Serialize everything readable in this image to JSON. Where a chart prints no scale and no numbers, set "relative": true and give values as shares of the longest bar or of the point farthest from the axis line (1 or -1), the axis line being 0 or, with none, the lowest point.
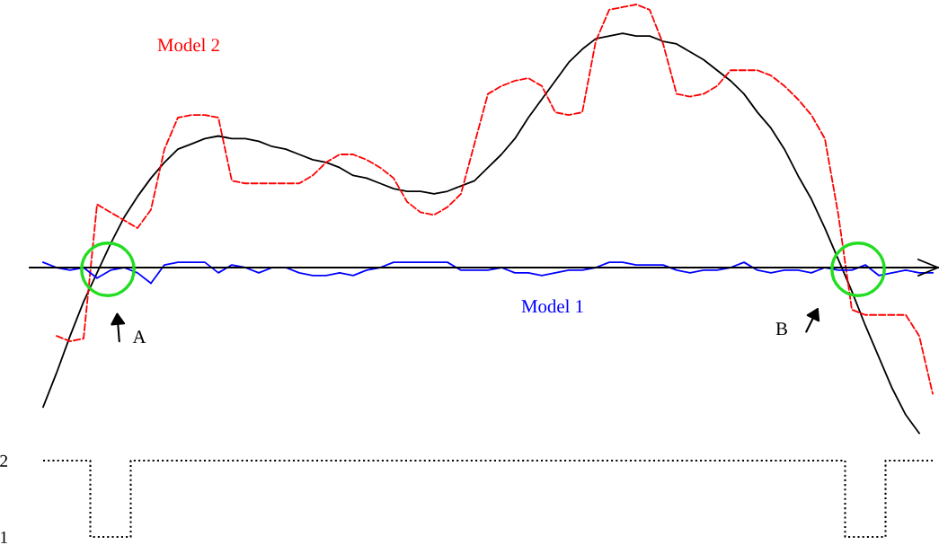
{
  "chart_data": [
    {
      "type": "line",
      "relative": true,
      "line_style": "solid",
      "marker": "none",
      "grid": false,
      "legend": false,
      "categories": [
        null,
        null,
        null,
        null,
        null,
        null,
        null,
        null,
        null,
        null,
        null,
        null,
        null,
        null,
        null,
        null,
        null,
        null,
        null,
        null,
        null,
        null,
        null,
        null,
        null,
        null,
        null,
        null,
        null,
        null,
        null,
        null,
        null,
        null,
        null,
        null,
        null,
        null,
        null,
        null,
        null,
        null,
        null,
        null,
        null,
        null,
        null,
        null,
        null,
        null,
        null,
        null,
        null,
        null,
        null,
        null,
        null,
        null,
        null,
        null,
        null,
        null,
        null,
        null,
        null,
        null,
        null
      ],
      "series": [
        {
          "color": "#000000",
          "values": [
            -0.53,
            -0.4,
            -0.26,
            -0.13,
            -0.02,
            0.09,
            0.19,
            0.27,
            0.34,
            0.4,
            0.45,
            0.47,
            0.49,
            0.5,
            0.49,
            0.49,
            0.48,
            0.46,
            0.45,
            0.43,
            0.41,
            0.4,
            0.38,
            0.35,
            0.34,
            0.32,
            0.3,
            0.29,
            0.29,
            0.28,
            0.29,
            0.31,
            0.33,
            0.38,
            0.43,
            0.49,
            0.57,
            0.64,
            0.71,
            0.78,
            0.83,
            0.87,
            0.88,
            0.89,
            0.88,
            0.88,
            0.86,
            0.85,
            0.82,
            0.79,
            0.75,
            0.71,
            0.66,
            0.59,
            0.53,
            0.45,
            0.35,
            0.26,
            0.15,
            0.03,
            -0.09,
            -0.22,
            -0.34,
            -0.46,
            -0.56,
            -0.63,
            null
          ]
        },
        {
          "name": "Model 2",
          "color": "#ff0000",
          "line_style": "dashed",
          "values": [
            null,
            -0.26,
            -0.28,
            -0.27,
            0.24,
            0.21,
            0.18,
            0.15,
            0.22,
            0.45,
            0.57,
            0.58,
            0.58,
            0.57,
            0.33,
            0.32,
            0.32,
            0.32,
            0.32,
            0.32,
            0.35,
            0.4,
            0.43,
            0.43,
            0.41,
            0.38,
            0.34,
            0.25,
            0.21,
            0.2,
            0.23,
            0.28,
            0.47,
            0.66,
            0.69,
            0.71,
            0.72,
            0.69,
            0.59,
            0.58,
            0.59,
            0.86,
            0.98,
            0.99,
            1.0,
            0.98,
            0.85,
            0.66,
            0.65,
            0.66,
            0.69,
            0.75,
            0.75,
            0.75,
            0.73,
            0.69,
            0.64,
            0.58,
            0.49,
            0.2,
            -0.16,
            -0.18,
            -0.18,
            -0.18,
            -0.18,
            -0.26,
            -0.48
          ]
        },
        {
          "name": "Model 1",
          "color": "#0000ff",
          "values": [
            0.02,
            0,
            -0.01,
            0,
            -0.04,
            -0.01,
            0,
            -0.02,
            -0.06,
            0.01,
            0.02,
            0.02,
            0.02,
            -0.02,
            0.01,
            0,
            -0.02,
            0,
            0,
            -0.02,
            -0.03,
            -0.03,
            -0.02,
            -0.03,
            -0.01,
            0,
            0.02,
            0.02,
            0.02,
            0.02,
            0.02,
            -0.01,
            -0.01,
            -0.01,
            0,
            -0.02,
            -0.02,
            -0.03,
            -0.02,
            -0.01,
            -0.01,
            0,
            0.02,
            0.02,
            0.01,
            0.01,
            0.01,
            -0.01,
            -0.02,
            -0.01,
            -0.01,
            0,
            0.02,
            -0.01,
            -0.02,
            -0.01,
            -0.01,
            -0.02,
            0,
            -0.01,
            -0.01,
            0.01,
            -0.03,
            -0.02,
            -0.01,
            -0.02,
            -0.02
          ]
        }
      ],
      "annotations": [
        "A",
        "B"
      ]
    },
    {
      "type": "step",
      "line_style": "dotted",
      "marker": "none",
      "grid": false,
      "legend": false,
      "tick_labels": "y",
      "categories": [
        null,
        null,
        null,
        null,
        null,
        null,
        null,
        null,
        null,
        null,
        null,
        null,
        null,
        null,
        null,
        null,
        null,
        null,
        null,
        null,
        null,
        null,
        null,
        null,
        null,
        null,
        null,
        null,
        null,
        null,
        null,
        null,
        null,
        null,
        null,
        null,
        null,
        null,
        null,
        null,
        null,
        null,
        null,
        null,
        null,
        null,
        null,
        null,
        null,
        null,
        null,
        null,
        null,
        null,
        null,
        null,
        null,
        null,
        null,
        null,
        null,
        null,
        null,
        null,
        null,
        null,
        null
      ],
      "series": [
        {
          "color": "#000000",
          "values": [
            2,
            2,
            2,
            2,
            1,
            1,
            1,
            2,
            2,
            2,
            2,
            2,
            2,
            2,
            2,
            2,
            2,
            2,
            2,
            2,
            2,
            2,
            2,
            2,
            2,
            2,
            2,
            2,
            2,
            2,
            2,
            2,
            2,
            2,
            2,
            2,
            2,
            2,
            2,
            2,
            2,
            2,
            2,
            2,
            2,
            2,
            2,
            2,
            2,
            2,
            2,
            2,
            2,
            2,
            2,
            2,
            2,
            2,
            2,
            2,
            1,
            1,
            1,
            2,
            2,
            2,
            2
          ]
        }
      ],
      "ylim": [
        1,
        2
      ],
      "yticks": [
        1,
        2
      ]
    }
  ]
}
